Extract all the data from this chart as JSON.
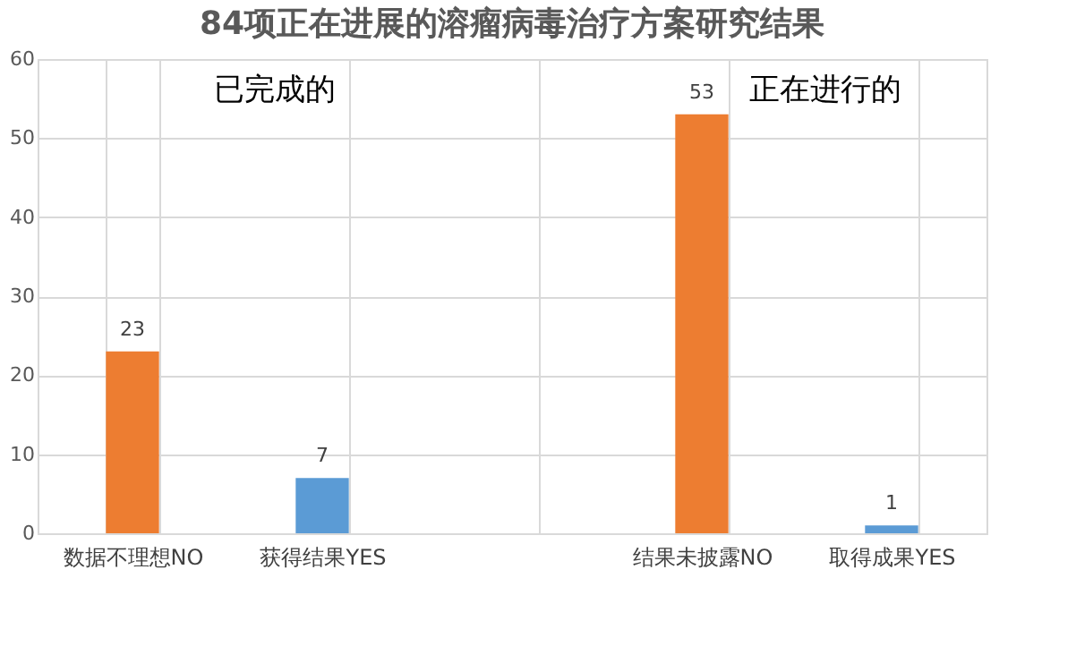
{
  "chart_data": {
    "type": "bar",
    "title": "84项正在进展的溶瘤病毒治疗方案研究结果",
    "categories": [
      "数据不理想NO",
      "获得结果YES",
      null,
      "结果未披露NO",
      "取得成果YES"
    ],
    "values": [
      23,
      7,
      null,
      53,
      1
    ],
    "colors": [
      "#ed7d31",
      "#5b9bd5",
      "#5b9bd5",
      "#ed7d31",
      "#5b9bd5"
    ],
    "ylim": [
      0,
      60
    ],
    "yticks": [
      0,
      10,
      20,
      30,
      40,
      50,
      60
    ],
    "grid": true,
    "data_labels": true,
    "annotations": [
      "已完成的",
      "正在进行的"
    ]
  }
}
